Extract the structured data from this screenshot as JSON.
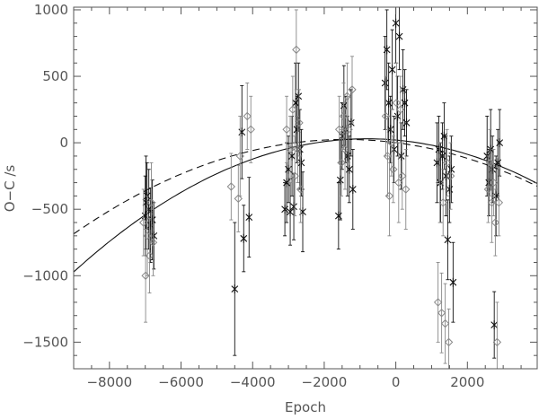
{
  "chart_data": {
    "type": "scatter",
    "title": "",
    "xlabel": "Epoch",
    "ylabel": "O−C /s",
    "xlim": [
      -9000,
      3950
    ],
    "ylim": [
      -1700,
      1020
    ],
    "x_ticks": [
      -8000,
      -6000,
      -4000,
      -2000,
      0,
      2000
    ],
    "x_tick_labels": [
      "−8000",
      "−6000",
      "−4000",
      "−2000",
      "0",
      "2000"
    ],
    "y_ticks": [
      -1500,
      -1000,
      -500,
      0,
      500,
      1000
    ],
    "y_tick_labels": [
      "−1500",
      "−1000",
      "−500",
      "0",
      "500",
      "1000"
    ],
    "grid": false,
    "series": [
      {
        "marker": "asterisk",
        "color": "#111111",
        "points": [
          {
            "x": -7000,
            "y": -550,
            "err": 300
          },
          {
            "x": -6980,
            "y": -450,
            "err": 350
          },
          {
            "x": -6950,
            "y": -400,
            "err": 250
          },
          {
            "x": -6900,
            "y": -500,
            "err": 300
          },
          {
            "x": -6850,
            "y": -620,
            "err": 280
          },
          {
            "x": -6800,
            "y": -580,
            "err": 300
          },
          {
            "x": -6760,
            "y": -700,
            "err": 250
          },
          {
            "x": -4500,
            "y": -1100,
            "err": 500
          },
          {
            "x": -4300,
            "y": 80,
            "err": 350
          },
          {
            "x": -4250,
            "y": -720,
            "err": 250
          },
          {
            "x": -4100,
            "y": -560,
            "err": 300
          },
          {
            "x": -3100,
            "y": -500,
            "err": 200
          },
          {
            "x": -3050,
            "y": -300,
            "err": 300
          },
          {
            "x": -3000,
            "y": -200,
            "err": 250
          },
          {
            "x": -2950,
            "y": -520,
            "err": 250
          },
          {
            "x": -2900,
            "y": -100,
            "err": 300
          },
          {
            "x": -2850,
            "y": -480,
            "err": 250
          },
          {
            "x": -2800,
            "y": 300,
            "err": 300
          },
          {
            "x": -2760,
            "y": 100,
            "err": 250
          },
          {
            "x": -2720,
            "y": 350,
            "err": 250
          },
          {
            "x": -2680,
            "y": -50,
            "err": 300
          },
          {
            "x": -2640,
            "y": -150,
            "err": 250
          },
          {
            "x": -2600,
            "y": -520,
            "err": 300
          },
          {
            "x": -1600,
            "y": -550,
            "err": 250
          },
          {
            "x": -1550,
            "y": -280,
            "err": 300
          },
          {
            "x": -1500,
            "y": 50,
            "err": 250
          },
          {
            "x": -1450,
            "y": 280,
            "err": 300
          },
          {
            "x": -1400,
            "y": 100,
            "err": 250
          },
          {
            "x": -1350,
            "y": -100,
            "err": 300
          },
          {
            "x": -1300,
            "y": -200,
            "err": 250
          },
          {
            "x": -1250,
            "y": 150,
            "err": 250
          },
          {
            "x": -1200,
            "y": -350,
            "err": 300
          },
          {
            "x": -300,
            "y": 450,
            "err": 350
          },
          {
            "x": -250,
            "y": 700,
            "err": 300
          },
          {
            "x": -200,
            "y": 300,
            "err": 300
          },
          {
            "x": -150,
            "y": 100,
            "err": 250
          },
          {
            "x": -100,
            "y": 550,
            "err": 300
          },
          {
            "x": -50,
            "y": -50,
            "err": 250
          },
          {
            "x": 0,
            "y": 900,
            "err": 300
          },
          {
            "x": 50,
            "y": 200,
            "err": 300
          },
          {
            "x": 100,
            "y": 800,
            "err": 250
          },
          {
            "x": 150,
            "y": -100,
            "err": 250
          },
          {
            "x": 200,
            "y": 400,
            "err": 300
          },
          {
            "x": 250,
            "y": 300,
            "err": 250
          },
          {
            "x": 300,
            "y": 150,
            "err": 250
          },
          {
            "x": 1150,
            "y": -150,
            "err": 300
          },
          {
            "x": 1200,
            "y": -50,
            "err": 250
          },
          {
            "x": 1250,
            "y": -300,
            "err": 300
          },
          {
            "x": 1300,
            "y": -100,
            "err": 250
          },
          {
            "x": 1350,
            "y": 50,
            "err": 250
          },
          {
            "x": 1400,
            "y": -250,
            "err": 300
          },
          {
            "x": 1450,
            "y": -730,
            "err": 300
          },
          {
            "x": 1500,
            "y": -350,
            "err": 250
          },
          {
            "x": 1550,
            "y": -200,
            "err": 250
          },
          {
            "x": 1600,
            "y": -1050,
            "err": 300
          },
          {
            "x": 2550,
            "y": -100,
            "err": 300
          },
          {
            "x": 2600,
            "y": -300,
            "err": 250
          },
          {
            "x": 2650,
            "y": -50,
            "err": 300
          },
          {
            "x": 2700,
            "y": -200,
            "err": 250
          },
          {
            "x": 2750,
            "y": -1370,
            "err": 250
          },
          {
            "x": 2800,
            "y": -400,
            "err": 300
          },
          {
            "x": 2850,
            "y": -150,
            "err": 250
          },
          {
            "x": 2900,
            "y": 0,
            "err": 250
          }
        ]
      },
      {
        "marker": "diamond",
        "color": "#888888",
        "points": [
          {
            "x": -7050,
            "y": -600,
            "err": 250
          },
          {
            "x": -6990,
            "y": -1000,
            "err": 350
          },
          {
            "x": -6940,
            "y": -700,
            "err": 300
          },
          {
            "x": -6880,
            "y": -850,
            "err": 280
          },
          {
            "x": -6830,
            "y": -450,
            "err": 300
          },
          {
            "x": -6780,
            "y": -750,
            "err": 250
          },
          {
            "x": -4600,
            "y": -330,
            "err": 250
          },
          {
            "x": -4400,
            "y": -420,
            "err": 250
          },
          {
            "x": -4350,
            "y": -100,
            "err": 300
          },
          {
            "x": -4150,
            "y": 200,
            "err": 250
          },
          {
            "x": -4050,
            "y": 100,
            "err": 250
          },
          {
            "x": -3050,
            "y": 100,
            "err": 250
          },
          {
            "x": -2950,
            "y": -50,
            "err": 250
          },
          {
            "x": -2880,
            "y": 250,
            "err": 250
          },
          {
            "x": -2820,
            "y": -250,
            "err": 300
          },
          {
            "x": -2780,
            "y": 700,
            "err": 300
          },
          {
            "x": -2740,
            "y": -50,
            "err": 250
          },
          {
            "x": -2700,
            "y": 150,
            "err": 250
          },
          {
            "x": -2660,
            "y": -350,
            "err": 250
          },
          {
            "x": -1580,
            "y": 100,
            "err": 250
          },
          {
            "x": -1520,
            "y": -150,
            "err": 250
          },
          {
            "x": -1460,
            "y": 200,
            "err": 250
          },
          {
            "x": -1420,
            "y": -50,
            "err": 300
          },
          {
            "x": -1360,
            "y": 350,
            "err": 250
          },
          {
            "x": -1320,
            "y": 100,
            "err": 250
          },
          {
            "x": -1220,
            "y": 400,
            "err": 250
          },
          {
            "x": -280,
            "y": 200,
            "err": 300
          },
          {
            "x": -230,
            "y": -100,
            "err": 300
          },
          {
            "x": -180,
            "y": -400,
            "err": 300
          },
          {
            "x": -120,
            "y": 0,
            "err": 250
          },
          {
            "x": -70,
            "y": -200,
            "err": 250
          },
          {
            "x": 20,
            "y": 300,
            "err": 300
          },
          {
            "x": 80,
            "y": -300,
            "err": 300
          },
          {
            "x": 130,
            "y": 250,
            "err": 250
          },
          {
            "x": 180,
            "y": -250,
            "err": 250
          },
          {
            "x": 280,
            "y": -350,
            "err": 300
          },
          {
            "x": 1180,
            "y": -1200,
            "err": 300
          },
          {
            "x": 1230,
            "y": -300,
            "err": 300
          },
          {
            "x": 1280,
            "y": -1280,
            "err": 300
          },
          {
            "x": 1320,
            "y": -450,
            "err": 250
          },
          {
            "x": 1380,
            "y": -1360,
            "err": 300
          },
          {
            "x": 1430,
            "y": -150,
            "err": 250
          },
          {
            "x": 1480,
            "y": -1500,
            "err": 250
          },
          {
            "x": 1530,
            "y": -250,
            "err": 250
          },
          {
            "x": 2580,
            "y": -350,
            "err": 250
          },
          {
            "x": 2630,
            "y": -150,
            "err": 250
          },
          {
            "x": 2680,
            "y": -450,
            "err": 300
          },
          {
            "x": 2730,
            "y": -300,
            "err": 250
          },
          {
            "x": 2780,
            "y": -600,
            "err": 250
          },
          {
            "x": 2830,
            "y": -1500,
            "err": 300
          },
          {
            "x": 2880,
            "y": -450,
            "err": 250
          }
        ]
      }
    ],
    "curves": [
      {
        "style": "solid",
        "x_range": [
          -9000,
          3950
        ],
        "vertex_x": -800,
        "vertex_y": 30,
        "curvature": 1.49e-05
      },
      {
        "style": "dashed",
        "x_range": [
          -9000,
          3950
        ],
        "vertex_x": -1400,
        "vertex_y": 25,
        "curvature": 1.23e-05
      }
    ]
  }
}
